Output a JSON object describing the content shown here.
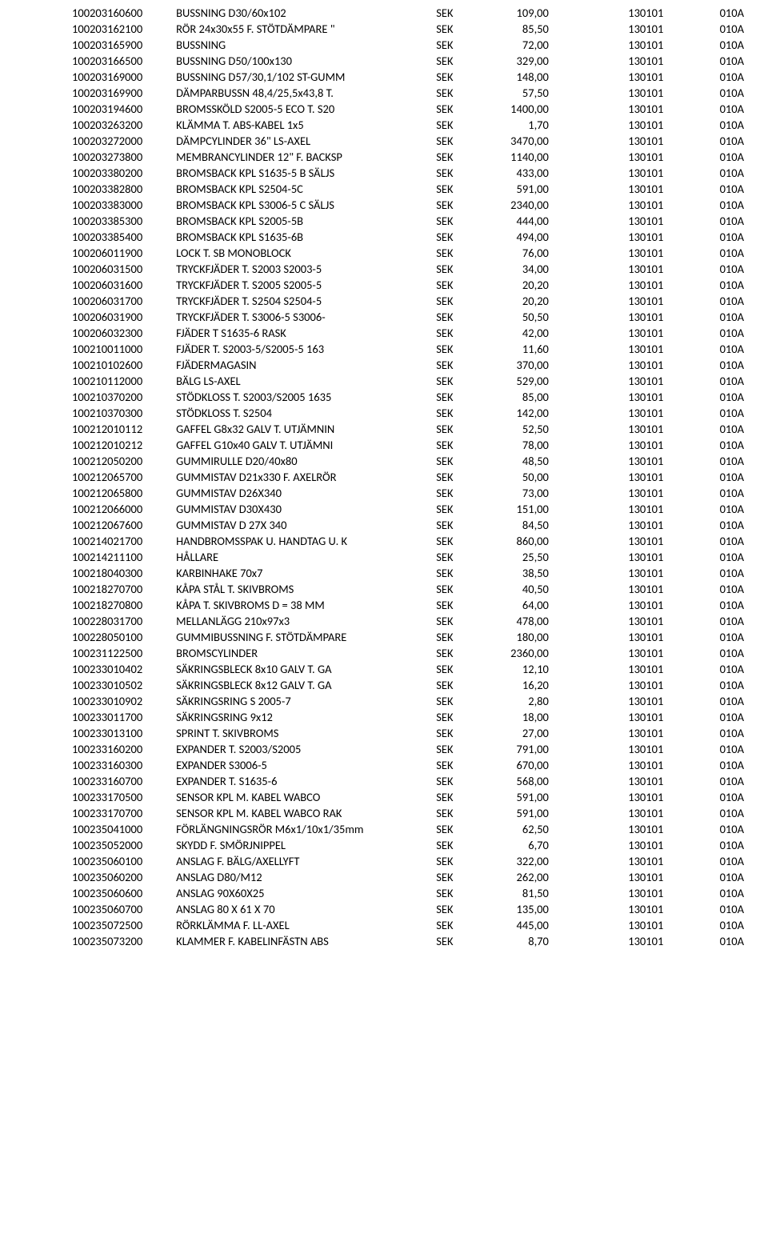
{
  "table": {
    "currency": "SEK",
    "date": "130101",
    "code": "010A",
    "rows": [
      {
        "art": "100203160600",
        "desc": "BUSSNING D30/60x102",
        "price": "109,00"
      },
      {
        "art": "100203162100",
        "desc": "RÖR 24x30x55  F. STÖTDÄMPARE \"",
        "price": "85,50"
      },
      {
        "art": "100203165900",
        "desc": "BUSSNING",
        "price": "72,00"
      },
      {
        "art": "100203166500",
        "desc": "BUSSNING D50/100x130",
        "price": "329,00"
      },
      {
        "art": "100203169000",
        "desc": "BUSSNING D57/30,1/102  ST-GUMM",
        "price": "148,00"
      },
      {
        "art": "100203169900",
        "desc": "DÄMPARBUSSN 48,4/25,5x43,8 T.",
        "price": "57,50"
      },
      {
        "art": "100203194600",
        "desc": "BROMSSKÖLD S2005-5 ECO T. S20",
        "price": "1400,00"
      },
      {
        "art": "100203263200",
        "desc": "KLÄMMA T. ABS-KABEL 1x5",
        "price": "1,70"
      },
      {
        "art": "100203272000",
        "desc": "DÄMPCYLINDER 36\" LS-AXEL",
        "price": "3470,00"
      },
      {
        "art": "100203273800",
        "desc": "MEMBRANCYLINDER 12\"  F. BACKSP",
        "price": "1140,00"
      },
      {
        "art": "100203380200",
        "desc": "BROMSBACK KPL S1635-5 B  SÄLJS",
        "price": "433,00"
      },
      {
        "art": "100203382800",
        "desc": "BROMSBACK KPL S2504-5C",
        "price": "591,00"
      },
      {
        "art": "100203383000",
        "desc": "BROMSBACK KPL S3006-5 C  SÄLJS",
        "price": "2340,00"
      },
      {
        "art": "100203385300",
        "desc": "BROMSBACK KPL S2005-5B",
        "price": "444,00"
      },
      {
        "art": "100203385400",
        "desc": "BROMSBACK KPL S1635-6B",
        "price": "494,00"
      },
      {
        "art": "100206011900",
        "desc": "LOCK T. SB MONOBLOCK",
        "price": "76,00"
      },
      {
        "art": "100206031500",
        "desc": "TRYCKFJÄDER T. S2003  S2003-5",
        "price": "34,00"
      },
      {
        "art": "100206031600",
        "desc": "TRYCKFJÄDER T. S2005  S2005-5",
        "price": "20,20"
      },
      {
        "art": "100206031700",
        "desc": "TRYCKFJÄDER T. S2504  S2504-5",
        "price": "20,20"
      },
      {
        "art": "100206031900",
        "desc": "TRYCKFJÄDER T. S3006-5  S3006-",
        "price": "50,50"
      },
      {
        "art": "100206032300",
        "desc": "FJÄDER T S1635-6 RASK",
        "price": "42,00"
      },
      {
        "art": "100210011000",
        "desc": "FJÄDER T. S2003-5/S2005-5  163",
        "price": "11,60"
      },
      {
        "art": "100210102600",
        "desc": "FJÄDERMAGASIN",
        "price": "370,00"
      },
      {
        "art": "100210112000",
        "desc": "BÄLG LS-AXEL",
        "price": "529,00"
      },
      {
        "art": "100210370200",
        "desc": "STÖDKLOSS T. S2003/S2005  1635",
        "price": "85,00"
      },
      {
        "art": "100210370300",
        "desc": "STÖDKLOSS T. S2504",
        "price": "142,00"
      },
      {
        "art": "100212010112",
        "desc": "GAFFEL G8x32 GALV  T. UTJÄMNIN",
        "price": "52,50"
      },
      {
        "art": "100212010212",
        "desc": "GAFFEL G10x40 GALV  T. UTJÄMNI",
        "price": "78,00"
      },
      {
        "art": "100212050200",
        "desc": "GUMMIRULLE D20/40x80",
        "price": "48,50"
      },
      {
        "art": "100212065700",
        "desc": "GUMMISTAV D21x330  F. AXELRÖR",
        "price": "50,00"
      },
      {
        "art": "100212065800",
        "desc": "GUMMISTAV  D26X340",
        "price": "73,00"
      },
      {
        "art": "100212066000",
        "desc": "GUMMISTAV  D30X430",
        "price": "151,00"
      },
      {
        "art": "100212067600",
        "desc": "GUMMISTAV D 27X 340",
        "price": "84,50"
      },
      {
        "art": "100214021700",
        "desc": "HANDBROMSSPAK U. HANDTAG  U. K",
        "price": "860,00"
      },
      {
        "art": "100214211100",
        "desc": "HÅLLARE",
        "price": "25,50"
      },
      {
        "art": "100218040300",
        "desc": "KARBINHAKE 70x7",
        "price": "38,50"
      },
      {
        "art": "100218270700",
        "desc": "KÅPA STÅL T. SKIVBROMS",
        "price": "40,50"
      },
      {
        "art": "100218270800",
        "desc": "KÅPA T. SKIVBROMS D = 38 MM",
        "price": "64,00"
      },
      {
        "art": "100228031700",
        "desc": "MELLANLÄGG 210x97x3",
        "price": "478,00"
      },
      {
        "art": "100228050100",
        "desc": "GUMMIBUSSNING  F. STÖTDÄMPARE",
        "price": "180,00"
      },
      {
        "art": "100231122500",
        "desc": "BROMSCYLINDER",
        "price": "2360,00"
      },
      {
        "art": "100233010402",
        "desc": "SÄKRINGSBLECK 8x10 GALV  T. GA",
        "price": "12,10"
      },
      {
        "art": "100233010502",
        "desc": "SÄKRINGSBLECK 8x12 GALV  T. GA",
        "price": "16,20"
      },
      {
        "art": "100233010902",
        "desc": "SÄKRINGSRING S 2005-7",
        "price": "2,80"
      },
      {
        "art": "100233011700",
        "desc": "SÄKRINGSRING 9x12",
        "price": "18,00"
      },
      {
        "art": "100233013100",
        "desc": "SPRINT T. SKIVBROMS",
        "price": "27,00"
      },
      {
        "art": "100233160200",
        "desc": "EXPANDER T. S2003/S2005",
        "price": "791,00"
      },
      {
        "art": "100233160300",
        "desc": "EXPANDER S3006-5",
        "price": "670,00"
      },
      {
        "art": "100233160700",
        "desc": "EXPANDER T. S1635-6",
        "price": "568,00"
      },
      {
        "art": "100233170500",
        "desc": "SENSOR KPL M. KABEL WABCO",
        "price": "591,00"
      },
      {
        "art": "100233170700",
        "desc": "SENSOR KPL M. KABEL WABCO  RAK",
        "price": "591,00"
      },
      {
        "art": "100235041000",
        "desc": "FÖRLÄNGNINGSRÖR M6x1/10x1/35mm",
        "price": "62,50"
      },
      {
        "art": "100235052000",
        "desc": "SKYDD F. SMÖRJNIPPEL",
        "price": "6,70"
      },
      {
        "art": "100235060100",
        "desc": "ANSLAG F. BÄLG/AXELLYFT",
        "price": "322,00"
      },
      {
        "art": "100235060200",
        "desc": "ANSLAG D80/M12",
        "price": "262,00"
      },
      {
        "art": "100235060600",
        "desc": "ANSLAG 90X60X25",
        "price": "81,50"
      },
      {
        "art": "100235060700",
        "desc": "ANSLAG 80 X 61 X 70",
        "price": "135,00"
      },
      {
        "art": "100235072500",
        "desc": "RÖRKLÄMMA F. LL-AXEL",
        "price": "445,00"
      },
      {
        "art": "100235073200",
        "desc": "KLAMMER F. KABELINFÄSTN  ABS",
        "price": "8,70"
      }
    ]
  }
}
